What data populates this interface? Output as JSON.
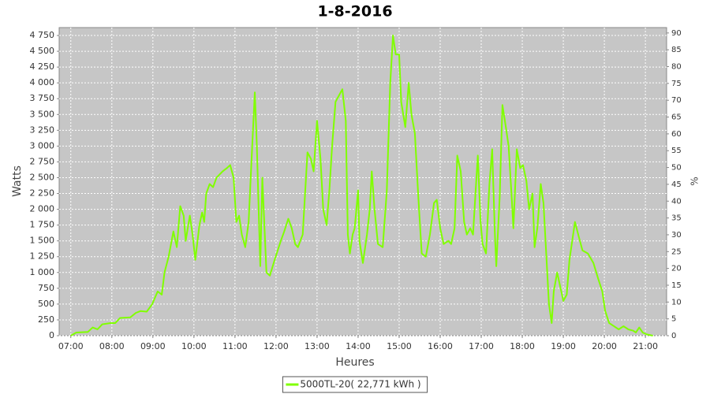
{
  "chart_data": {
    "type": "line",
    "title": "1-8-2016",
    "x_label": "Heures",
    "y_label": "Watts",
    "y2_label": "%",
    "x": [
      "07:00",
      "07:08",
      "07:25",
      "07:32",
      "07:39",
      "07:46",
      "07:58",
      "08:05",
      "08:12",
      "08:27",
      "08:35",
      "08:42",
      "08:51",
      "08:59",
      "09:07",
      "09:13",
      "09:17",
      "09:23",
      "09:30",
      "09:35",
      "09:40",
      "09:45",
      "09:48",
      "09:54",
      "09:58",
      "10:02",
      "10:08",
      "10:12",
      "10:15",
      "10:18",
      "10:23",
      "10:28",
      "10:33",
      "10:42",
      "10:48",
      "10:53",
      "10:58",
      "11:02",
      "11:06",
      "11:10",
      "11:15",
      "11:20",
      "11:23",
      "11:29",
      "11:32",
      "11:37",
      "11:40",
      "11:46",
      "11:51",
      "11:58",
      "12:07",
      "12:12",
      "12:18",
      "12:23",
      "12:28",
      "12:32",
      "12:39",
      "12:46",
      "12:51",
      "12:55",
      "13:00",
      "13:05",
      "13:09",
      "13:14",
      "13:18",
      "13:22",
      "13:27",
      "13:32",
      "13:37",
      "13:42",
      "13:45",
      "13:48",
      "13:52",
      "13:55",
      "14:00",
      "14:02",
      "14:07",
      "14:13",
      "14:17",
      "14:20",
      "14:24",
      "14:29",
      "14:36",
      "14:42",
      "14:47",
      "14:51",
      "14:55",
      "15:00",
      "15:03",
      "15:09",
      "15:14",
      "15:18",
      "15:23",
      "15:28",
      "15:33",
      "15:39",
      "15:45",
      "15:51",
      "15:55",
      "16:00",
      "16:05",
      "16:12",
      "16:16",
      "16:21",
      "16:25",
      "16:30",
      "16:35",
      "16:39",
      "16:44",
      "16:48",
      "16:53",
      "16:55",
      "16:59",
      "17:02",
      "17:07",
      "17:12",
      "17:16",
      "17:20",
      "17:22",
      "17:27",
      "17:31",
      "17:36",
      "17:40",
      "17:45",
      "17:47",
      "17:52",
      "17:57",
      "18:01",
      "18:06",
      "18:10",
      "18:15",
      "18:18",
      "18:22",
      "18:27",
      "18:31",
      "18:35",
      "18:39",
      "18:43",
      "18:46",
      "18:51",
      "18:55",
      "19:00",
      "19:05",
      "19:09",
      "19:17",
      "19:23",
      "19:28",
      "19:36",
      "19:44",
      "19:51",
      "19:57",
      "20:01",
      "20:07",
      "20:14",
      "20:21",
      "20:28",
      "20:35",
      "20:42",
      "20:46",
      "20:51",
      "20:56",
      "21:02",
      "21:11"
    ],
    "series": [
      {
        "name": "5000TL-20( 22,771 kWh )",
        "color": "#80ff00",
        "values": [
          0,
          50,
          60,
          130,
          100,
          180,
          200,
          200,
          280,
          290,
          360,
          390,
          380,
          500,
          700,
          650,
          1000,
          1250,
          1650,
          1400,
          2050,
          1900,
          1500,
          1900,
          1600,
          1200,
          1750,
          1950,
          1800,
          2250,
          2400,
          2350,
          2500,
          2600,
          2650,
          2700,
          2500,
          1800,
          1900,
          1600,
          1400,
          1800,
          2500,
          3850,
          3000,
          1100,
          2500,
          1000,
          950,
          1200,
          1500,
          1650,
          1850,
          1700,
          1450,
          1400,
          1600,
          2900,
          2800,
          2600,
          3400,
          2800,
          2000,
          1750,
          2300,
          3000,
          3700,
          3800,
          3900,
          3400,
          1600,
          1300,
          1600,
          1700,
          2300,
          1500,
          1150,
          1600,
          2000,
          2600,
          2000,
          1450,
          1400,
          2300,
          4000,
          4750,
          4450,
          4450,
          3700,
          3300,
          4000,
          3500,
          3200,
          2200,
          1300,
          1250,
          1600,
          2100,
          2150,
          1700,
          1450,
          1500,
          1450,
          1700,
          2850,
          2600,
          1800,
          1600,
          1700,
          1600,
          2500,
          2850,
          1800,
          1450,
          1300,
          2400,
          2950,
          1600,
          1100,
          2200,
          3650,
          3300,
          3000,
          2100,
          1700,
          2950,
          2650,
          2700,
          2450,
          2000,
          2250,
          1400,
          1700,
          2400,
          2100,
          1300,
          500,
          200,
          700,
          1000,
          800,
          550,
          650,
          1200,
          1800,
          1550,
          1350,
          1300,
          1150,
          900,
          700,
          400,
          200,
          150,
          100,
          150,
          100,
          80,
          50,
          130,
          50,
          20,
          0
        ]
      }
    ],
    "xlim": [
      "06:43",
      "21:31"
    ],
    "xticks": [
      "07:00",
      "08:00",
      "09:00",
      "10:00",
      "11:00",
      "12:00",
      "13:00",
      "14:00",
      "15:00",
      "16:00",
      "17:00",
      "18:00",
      "19:00",
      "20:00",
      "21:00"
    ],
    "ylim": [
      0,
      4875
    ],
    "yticks": [
      0,
      250,
      500,
      750,
      {
        "value": 1000,
        "label": "1 000"
      },
      {
        "value": 1250,
        "label": "1 250"
      },
      {
        "value": 1500,
        "label": "1 500"
      },
      {
        "value": 1750,
        "label": "1 750"
      },
      {
        "value": 2000,
        "label": "2 000"
      },
      {
        "value": 2250,
        "label": "2 250"
      },
      {
        "value": 2500,
        "label": "2 500"
      },
      {
        "value": 2750,
        "label": "2 750"
      },
      {
        "value": 3000,
        "label": "3 000"
      },
      {
        "value": 3250,
        "label": "3 250"
      },
      {
        "value": 3500,
        "label": "3 500"
      },
      {
        "value": 3750,
        "label": "3 750"
      },
      {
        "value": 4000,
        "label": "4 000"
      },
      {
        "value": 4250,
        "label": "4 250"
      },
      {
        "value": 4500,
        "label": "4 500"
      },
      {
        "value": 4750,
        "label": "4 750"
      }
    ],
    "y2lim": [
      0,
      91.6
    ],
    "y2ticks": [
      0,
      5,
      10,
      15,
      20,
      25,
      30,
      35,
      40,
      45,
      50,
      55,
      60,
      65,
      70,
      75,
      80,
      85,
      90
    ],
    "grid": true,
    "legend": "bottom"
  }
}
